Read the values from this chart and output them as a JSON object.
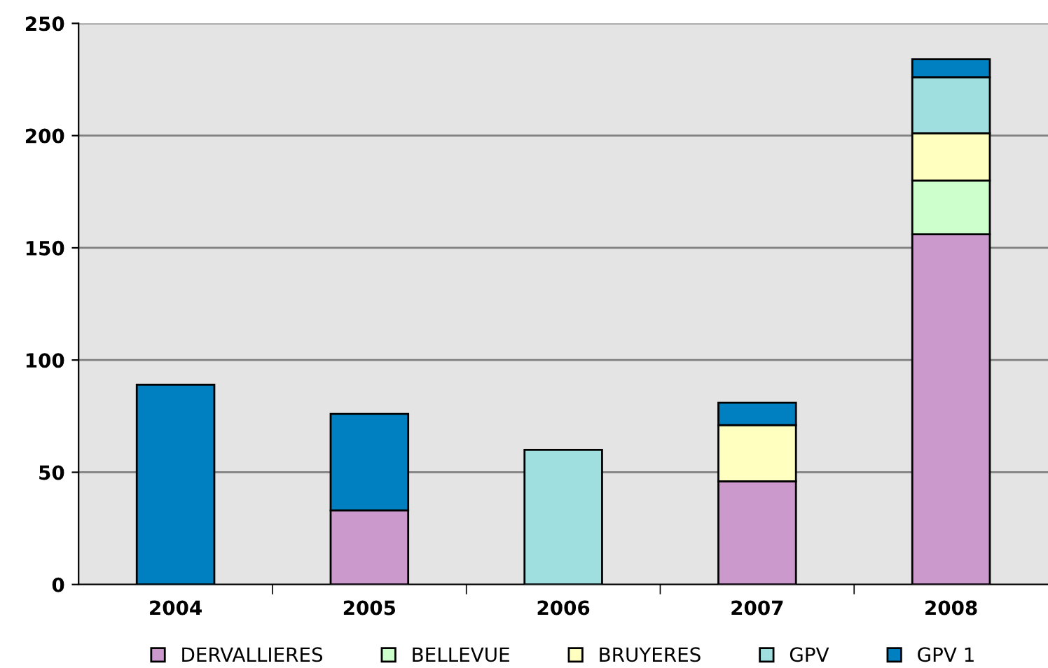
{
  "chart_data": {
    "type": "bar",
    "stacked": true,
    "categories": [
      "2004",
      "2005",
      "2006",
      "2007",
      "2008"
    ],
    "series": [
      {
        "name": "DERVALLIERES",
        "color": "#cc99cc",
        "values": [
          0,
          33,
          0,
          46,
          156
        ]
      },
      {
        "name": "BELLEVUE",
        "color": "#ccffcc",
        "values": [
          0,
          0,
          0,
          0,
          24
        ]
      },
      {
        "name": "BRUYERES",
        "color": "#ffffc0",
        "values": [
          0,
          0,
          0,
          25,
          21
        ]
      },
      {
        "name": "GPV",
        "color": "#a0dfe0",
        "values": [
          0,
          0,
          60,
          0,
          25
        ]
      },
      {
        "name": "GPV 1",
        "color": "#0080c0",
        "values": [
          89,
          43,
          0,
          10,
          8
        ]
      }
    ],
    "ylim": [
      0,
      250
    ],
    "yticks": [
      0,
      50,
      100,
      150,
      200,
      250
    ],
    "grid": "y",
    "legend": "bottom"
  }
}
